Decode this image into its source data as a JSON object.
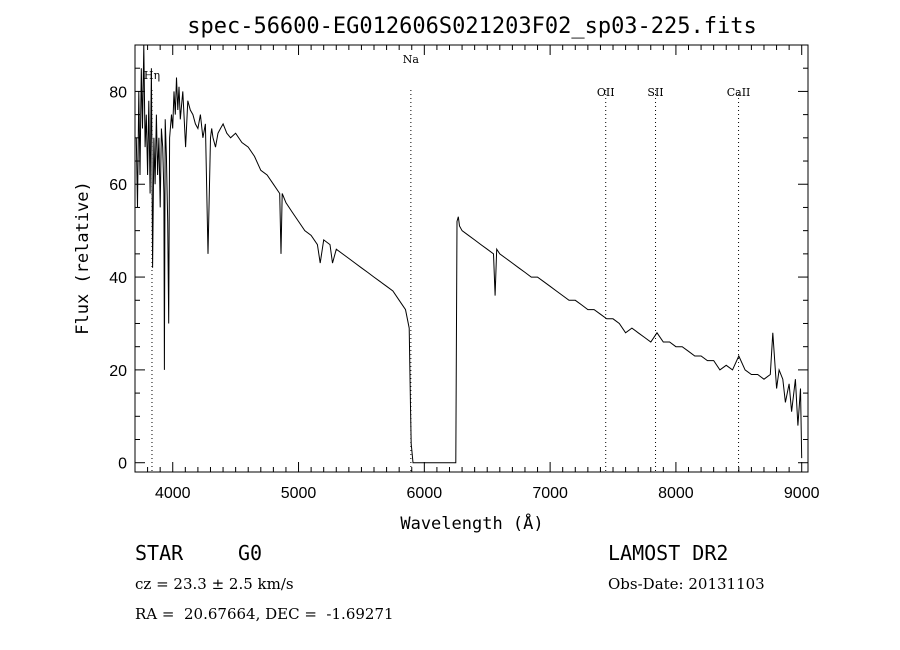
{
  "chart_data": {
    "type": "line",
    "title": "spec-56600-EG012606S021203F02_sp03-225.fits",
    "xlabel": "Wavelength (Å)",
    "ylabel": "Flux (relative)",
    "xlim": [
      3700,
      9050
    ],
    "ylim": [
      -2,
      90
    ],
    "xticks": [
      4000,
      5000,
      6000,
      7000,
      8000,
      9000
    ],
    "yticks": [
      0,
      20,
      40,
      60,
      80
    ],
    "grid": false,
    "line_markers": [
      {
        "label": "Hη",
        "wavelength": 3835
      },
      {
        "label": "Na",
        "wavelength": 5893
      },
      {
        "label": "OII",
        "wavelength": 7442
      },
      {
        "label": "SII",
        "wavelength": 7838
      },
      {
        "label": "CaII",
        "wavelength": 8498
      }
    ],
    "series": [
      {
        "x": [
          3710,
          3720,
          3730,
          3740,
          3750,
          3760,
          3770,
          3780,
          3790,
          3800,
          3810,
          3820,
          3830,
          3840,
          3850,
          3860,
          3870,
          3880,
          3890,
          3900,
          3910,
          3920,
          3930,
          3934,
          3940,
          3950,
          3960,
          3968,
          3975,
          3990,
          4000,
          4010,
          4020,
          4030,
          4040,
          4050,
          4060,
          4080,
          4102,
          4120,
          4140,
          4160,
          4180,
          4200,
          4220,
          4240,
          4260,
          4280,
          4300,
          4310,
          4320,
          4340,
          4360,
          4380,
          4400,
          4430,
          4460,
          4500,
          4550,
          4600,
          4650,
          4700,
          4750,
          4800,
          4850,
          4861,
          4870,
          4900,
          4950,
          5000,
          5050,
          5100,
          5150,
          5172,
          5200,
          5250,
          5270,
          5300,
          5350,
          5400,
          5450,
          5500,
          5550,
          5600,
          5650,
          5700,
          5750,
          5800,
          5850,
          5880,
          5890,
          5896,
          5900,
          5910,
          5915,
          5920,
          6250,
          6260,
          6270,
          6280,
          6300,
          6350,
          6400,
          6450,
          6500,
          6550,
          6563,
          6575,
          6600,
          6650,
          6700,
          6750,
          6800,
          6850,
          6900,
          6950,
          7000,
          7050,
          7100,
          7150,
          7200,
          7250,
          7300,
          7350,
          7400,
          7450,
          7500,
          7550,
          7600,
          7650,
          7700,
          7750,
          7800,
          7850,
          7900,
          7950,
          8000,
          8050,
          8100,
          8150,
          8200,
          8250,
          8300,
          8350,
          8400,
          8450,
          8500,
          8550,
          8600,
          8650,
          8700,
          8750,
          8770,
          8800,
          8820,
          8850,
          8870,
          8900,
          8920,
          8950,
          8970,
          8990,
          9000
        ],
        "y": [
          70,
          55,
          80,
          62,
          85,
          72,
          90,
          68,
          75,
          62,
          78,
          58,
          85,
          42,
          70,
          60,
          75,
          62,
          70,
          55,
          72,
          68,
          58,
          20,
          74,
          66,
          52,
          30,
          70,
          75,
          72,
          80,
          75,
          83,
          76,
          81,
          74,
          80,
          68,
          78,
          76,
          75,
          73,
          72,
          75,
          70,
          73,
          45,
          70,
          72,
          70,
          68,
          71,
          72,
          73,
          71,
          70,
          71,
          69,
          68,
          66,
          63,
          62,
          60,
          58,
          45,
          58,
          56,
          54,
          52,
          50,
          49,
          47,
          43,
          48,
          47,
          43,
          46,
          45,
          44,
          43,
          42,
          41,
          40,
          39,
          38,
          37,
          35,
          33,
          29,
          12,
          4,
          3,
          0,
          0,
          0,
          0,
          52,
          53,
          51,
          50,
          49,
          48,
          47,
          46,
          45,
          36,
          46,
          45,
          44,
          43,
          42,
          41,
          40,
          40,
          39,
          38,
          37,
          36,
          35,
          35,
          34,
          33,
          33,
          32,
          31,
          31,
          30,
          28,
          29,
          28,
          27,
          26,
          28,
          26,
          26,
          25,
          25,
          24,
          23,
          23,
          22,
          22,
          20,
          21,
          20,
          23,
          20,
          19,
          19,
          18,
          19,
          28,
          16,
          20,
          18,
          13,
          17,
          11,
          18,
          8,
          16,
          1
        ]
      }
    ]
  },
  "info": {
    "class_label": "STAR",
    "subclass": "G0",
    "survey": "LAMOST DR2",
    "cz": "cz = 23.3 ± 2.5 km/s",
    "obs_date": "Obs-Date: 20131103",
    "coords": "RA =  20.67664, DEC =  -1.69271"
  }
}
